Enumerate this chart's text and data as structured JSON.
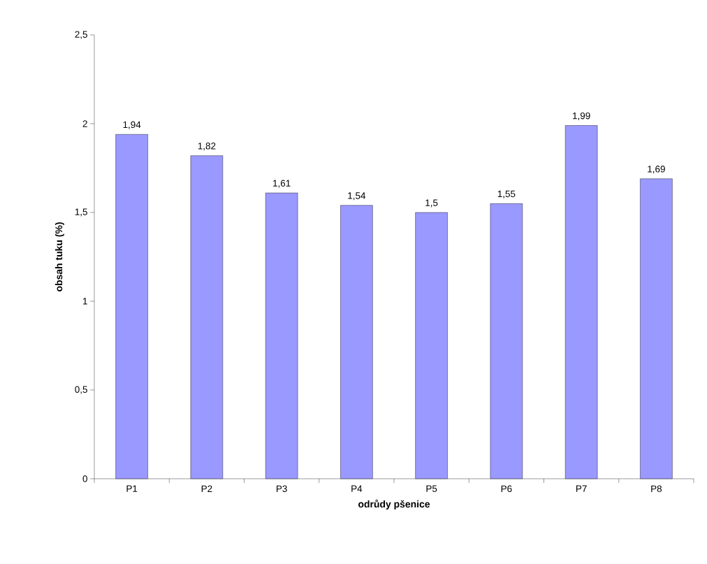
{
  "chart_data": {
    "type": "bar",
    "xlabel": "odrůdy pšenice",
    "ylabel": "obsah tuku (%)",
    "categories": [
      "P1",
      "P2",
      "P3",
      "P4",
      "P5",
      "P6",
      "P7",
      "P8"
    ],
    "values": [
      1.94,
      1.82,
      1.61,
      1.54,
      1.5,
      1.55,
      1.99,
      1.69
    ],
    "value_labels": [
      "1,94",
      "1,82",
      "1,61",
      "1,54",
      "1,5",
      "1,55",
      "1,99",
      "1,69"
    ],
    "color": "#9999ff",
    "ylim": [
      0,
      2.5
    ],
    "yticks": [
      0,
      {
        "value": 0.5,
        "label": "0,5"
      },
      1,
      {
        "value": 1.5,
        "label": "1,5"
      },
      2,
      {
        "value": 2.5,
        "label": "2,5"
      }
    ],
    "grid": false
  }
}
